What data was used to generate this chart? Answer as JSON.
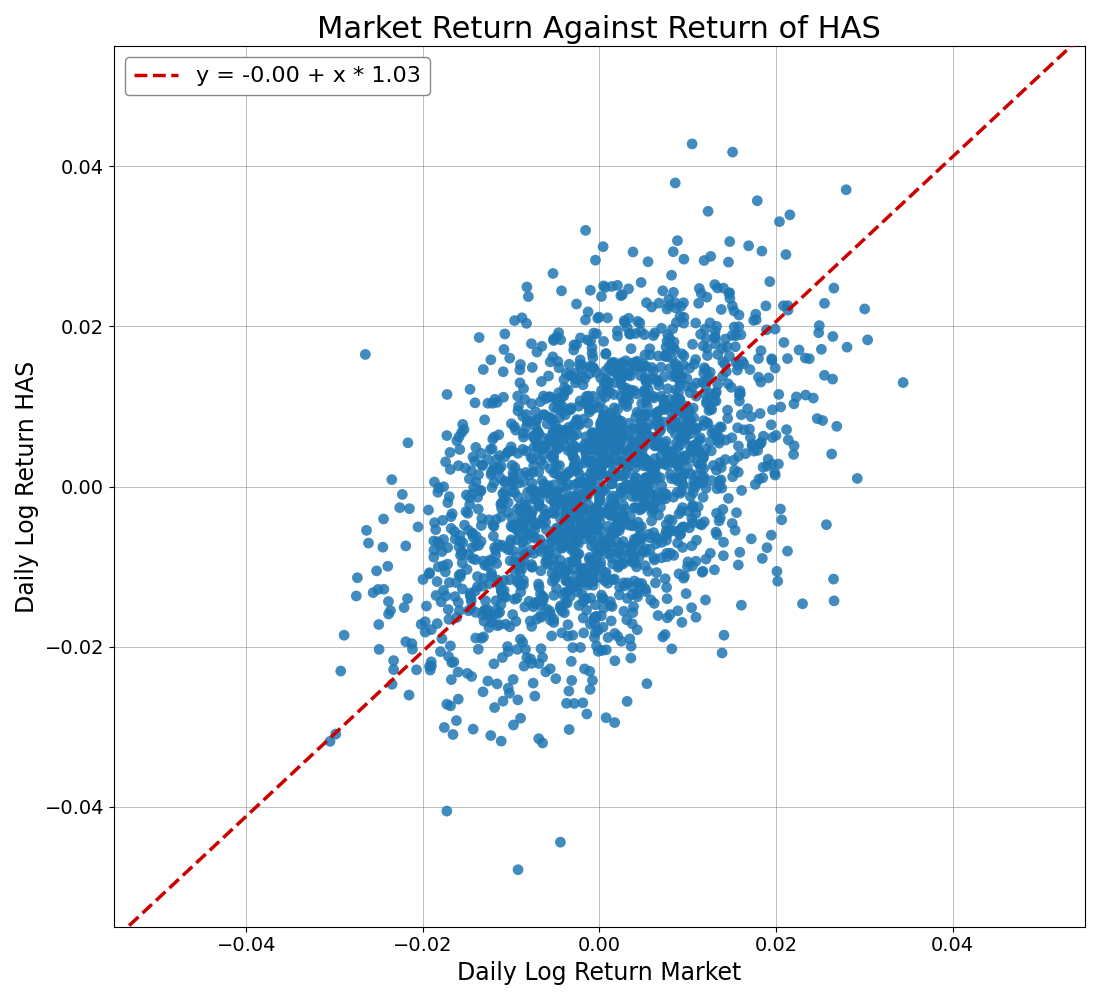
{
  "title": "Market Return Against Return of HAS",
  "xlabel": "Daily Log Return Market",
  "ylabel": "Daily Log Return HAS",
  "legend_label": "y = -0.00 + x * 1.03",
  "intercept": 0.0,
  "slope": 1.03,
  "xlim": [
    -0.055,
    0.055
  ],
  "ylim": [
    -0.055,
    0.055
  ],
  "scatter_color": "#1f77b4",
  "line_color": "#cc0000",
  "marker_size": 60,
  "seed": 12345,
  "n_points": 2000,
  "market_std": 0.01,
  "has_std": 0.012,
  "rho": 0.45,
  "title_fontsize": 22,
  "label_fontsize": 17,
  "tick_fontsize": 14,
  "legend_fontsize": 16,
  "figwidth": 11,
  "figheight": 10,
  "dpi": 100
}
